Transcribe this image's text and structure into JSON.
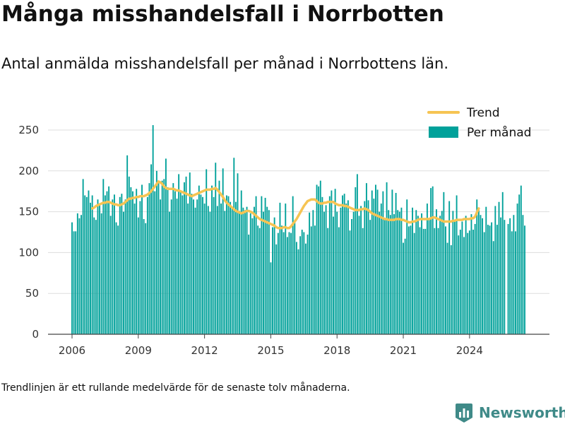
{
  "title": "Många misshandelsfall i Norrbotten",
  "subtitle": "Antal anmälda misshandelsfall per månad i Norrbottens län.",
  "footnote": "Trendlinjen är ett rullande medelvärde för de senaste tolv månaderna.",
  "logo": {
    "text": "Newsworthy",
    "icon": "bar-chart-badge-icon",
    "color": "#3f8a88"
  },
  "colors": {
    "bars": "#00a19a",
    "trend": "#f6c453",
    "grid": "#dddddd",
    "axis": "#444444"
  },
  "chart_data": {
    "type": "bar",
    "title": "Många misshandelsfall i Norrbotten",
    "subtitle": "Antal anmälda misshandelsfall per månad i Norrbottens län.",
    "xlabel": "",
    "ylabel": "",
    "ylim": [
      0,
      260
    ],
    "yticks": [
      0,
      50,
      100,
      150,
      200,
      250
    ],
    "ytick_labels": [
      "0",
      "50",
      "100",
      "150",
      "200",
      "250"
    ],
    "xticks": [
      "2006",
      "2009",
      "2012",
      "2015",
      "2018",
      "2021",
      "2024"
    ],
    "x_start": "2006-01",
    "x_end": "2024-07",
    "grid": true,
    "legend_position": "top-right",
    "legend": [
      "Trend",
      "Per månad"
    ],
    "series": [
      {
        "name": "Per månad",
        "kind": "bar",
        "values": [
          137,
          126,
          126,
          148,
          142,
          146,
          190,
          170,
          168,
          176,
          161,
          170,
          143,
          140,
          165,
          160,
          148,
          190,
          170,
          175,
          181,
          145,
          165,
          171,
          137,
          133,
          168,
          172,
          150,
          165,
          219,
          193,
          180,
          175,
          160,
          178,
          143,
          163,
          183,
          141,
          136,
          168,
          185,
          208,
          256,
          175,
          200,
          185,
          165,
          188,
          190,
          215,
          180,
          150,
          165,
          185,
          175,
          166,
          196,
          175,
          170,
          186,
          193,
          160,
          198,
          172,
          165,
          155,
          165,
          182,
          171,
          168,
          160,
          202,
          157,
          150,
          182,
          168,
          210,
          157,
          188,
          160,
          203,
          151,
          170,
          169,
          162,
          155,
          216,
          162,
          197,
          151,
          176,
          155,
          152,
          156,
          122,
          148,
          142,
          156,
          169,
          133,
          130,
          169,
          150,
          167,
          156,
          152,
          88,
          131,
          143,
          110,
          124,
          161,
          133,
          125,
          160,
          119,
          125,
          124,
          169,
          139,
          113,
          104,
          120,
          128,
          125,
          111,
          122,
          149,
          132,
          152,
          133,
          183,
          181,
          188,
          168,
          150,
          158,
          130,
          169,
          176,
          144,
          178,
          150,
          131,
          155,
          170,
          172,
          160,
          164,
          127,
          141,
          150,
          180,
          196,
          145,
          157,
          130,
          163,
          185,
          164,
          140,
          176,
          166,
          183,
          177,
          150,
          160,
          175,
          140,
          186,
          152,
          146,
          177,
          147,
          173,
          152,
          150,
          155,
          112,
          117,
          165,
          132,
          133,
          155,
          124,
          152,
          145,
          131,
          148,
          129,
          129,
          160,
          142,
          179,
          181,
          130,
          153,
          130,
          145,
          151,
          174,
          132,
          112,
          163,
          109,
          151,
          138,
          170,
          121,
          128,
          138,
          119,
          145,
          124,
          127,
          147,
          128,
          135,
          165,
          155,
          146,
          142,
          125,
          156,
          134,
          133,
          137,
          114,
          157,
          134,
          162,
          143,
          174,
          140,
          0,
          135,
          142,
          126,
          146,
          126,
          160,
          171,
          182,
          146,
          133
        ]
      },
      {
        "name": "Trend",
        "kind": "line",
        "start_index": 11,
        "values": [
          154,
          155,
          157,
          158,
          159,
          160,
          161,
          161,
          162,
          162,
          161,
          160,
          159,
          159,
          158,
          158,
          159,
          160,
          162,
          164,
          166,
          166,
          167,
          167,
          168,
          168,
          169,
          169,
          169,
          170,
          171,
          173,
          175,
          178,
          181,
          184,
          187,
          186,
          184,
          181,
          179,
          178,
          178,
          178,
          178,
          177,
          176,
          176,
          175,
          174,
          173,
          172,
          171,
          170,
          169,
          170,
          171,
          172,
          173,
          174,
          175,
          176,
          177,
          177,
          177,
          178,
          178,
          179,
          177,
          174,
          171,
          168,
          164,
          161,
          159,
          157,
          155,
          153,
          151,
          150,
          149,
          148,
          149,
          150,
          151,
          151,
          150,
          149,
          147,
          145,
          143,
          141,
          140,
          139,
          138,
          137,
          136,
          135,
          134,
          133,
          131,
          130,
          130,
          130,
          131,
          131,
          130,
          130,
          132,
          135,
          138,
          141,
          145,
          149,
          153,
          157,
          160,
          163,
          164,
          165,
          165,
          165,
          163,
          161,
          160,
          160,
          161,
          161,
          162,
          162,
          162,
          162,
          160,
          159,
          158,
          158,
          158,
          157,
          157,
          156,
          155,
          154,
          153,
          152,
          152,
          152,
          153,
          153,
          154,
          153,
          152,
          150,
          148,
          147,
          146,
          145,
          144,
          143,
          142,
          141,
          141,
          140,
          140,
          140,
          140,
          141,
          141,
          141,
          140,
          140,
          139,
          138,
          137,
          137,
          138,
          138,
          139,
          140,
          141,
          141,
          141,
          141,
          141,
          141,
          142,
          143,
          143,
          142,
          141,
          140,
          139,
          138,
          138,
          138,
          138,
          138,
          139,
          139,
          140,
          140,
          140,
          140,
          141,
          141,
          141,
          141,
          142,
          142,
          144,
          149,
          154
        ]
      }
    ]
  }
}
